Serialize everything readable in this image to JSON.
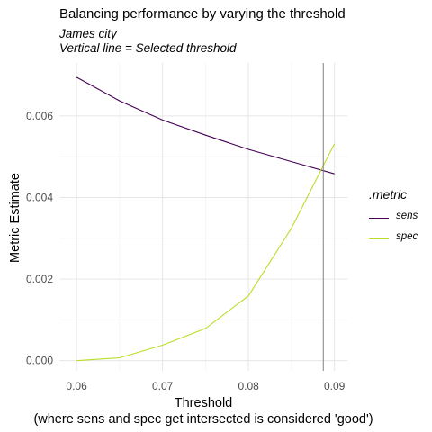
{
  "chart_data": {
    "type": "line",
    "title": "Balancing performance by varying the threshold",
    "subtitle_lines": [
      "James city",
      "Vertical line = Selected threshold"
    ],
    "xlabel": "Threshold",
    "xlabel_note": "(where sens and spec get intersected is considered 'good')",
    "ylabel": "Metric Estimate",
    "xlim": [
      0.058,
      0.0915
    ],
    "ylim": [
      -0.00025,
      0.0073
    ],
    "x_ticks": [
      0.06,
      0.07,
      0.08,
      0.09
    ],
    "x_tick_labels": [
      "0.06",
      "0.07",
      "0.08",
      "0.09"
    ],
    "y_ticks": [
      0.0,
      0.002,
      0.004,
      0.006
    ],
    "y_tick_labels": [
      "0.000",
      "0.002",
      "0.004",
      "0.006"
    ],
    "grid": true,
    "legend_title": ".metric",
    "legend_position": "right",
    "vline_x": 0.0887,
    "vline_color": "#808080",
    "series": [
      {
        "name": "sens",
        "color": "#440154",
        "x": [
          0.06,
          0.065,
          0.07,
          0.075,
          0.08,
          0.085,
          0.09
        ],
        "values": [
          0.00695,
          0.00637,
          0.0059,
          0.00553,
          0.00518,
          0.00488,
          0.00458
        ]
      },
      {
        "name": "spec",
        "color": "#b8de29",
        "x": [
          0.06,
          0.065,
          0.07,
          0.075,
          0.08,
          0.085,
          0.09
        ],
        "values": [
          0.0,
          7e-05,
          0.00038,
          0.00079,
          0.00159,
          0.00325,
          0.00532
        ]
      }
    ]
  }
}
